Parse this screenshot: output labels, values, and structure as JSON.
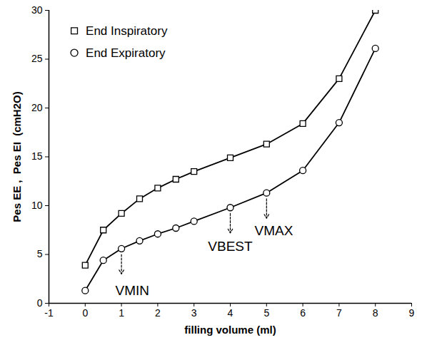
{
  "chart_data": {
    "type": "line",
    "x_label": "filling volume (ml)",
    "y_label": "Pes EE ,  Pes EI  (cmH2O)",
    "xlim": [
      -1,
      9
    ],
    "xticks": [
      -1,
      0,
      1,
      2,
      3,
      4,
      5,
      6,
      7,
      8,
      9
    ],
    "ylim": [
      0,
      30
    ],
    "yticks": [
      0,
      5,
      10,
      15,
      20,
      25,
      30
    ],
    "grid": false,
    "legend": "top-left",
    "x": [
      0,
      0.5,
      1,
      1.5,
      2,
      2.5,
      3,
      4,
      5,
      6,
      7,
      8
    ],
    "series": [
      {
        "name": "End Inspiratory",
        "color": "#000000",
        "marker": "square",
        "values": [
          3.9,
          7.5,
          9.2,
          10.7,
          11.8,
          12.7,
          13.5,
          14.9,
          16.3,
          18.4,
          23.0,
          30.0
        ]
      },
      {
        "name": "End Expiratory",
        "color": "#000000",
        "marker": "circle",
        "values": [
          1.3,
          4.4,
          5.6,
          6.4,
          7.1,
          7.7,
          8.4,
          9.8,
          11.3,
          13.6,
          18.5,
          26.1
        ]
      }
    ],
    "annotations": [
      {
        "text": "VMIN",
        "x": 1,
        "y_start": 5.0,
        "y_end": 3.0,
        "text_x": 1.3,
        "text_y": 1.3
      },
      {
        "text": "VBEST",
        "x": 4,
        "y_start": 9.2,
        "y_end": 7.2,
        "text_x": 4.0,
        "text_y": 5.8
      },
      {
        "text": "VMAX",
        "x": 5,
        "y_start": 10.7,
        "y_end": 8.7,
        "text_x": 5.2,
        "text_y": 7.4
      }
    ]
  }
}
